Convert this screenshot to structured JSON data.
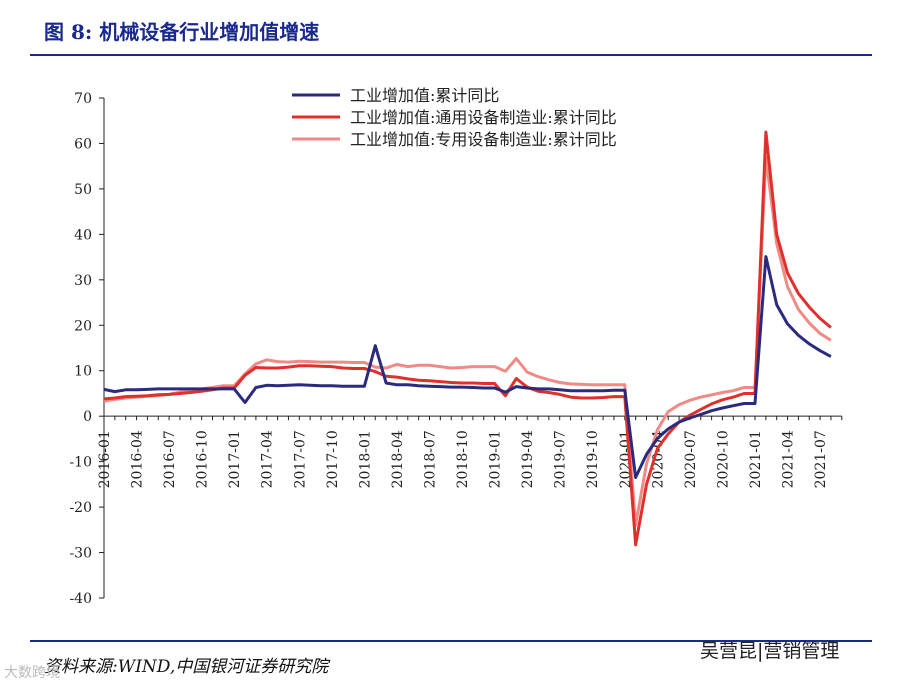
{
  "header": {
    "figure_title": "图 8:  机械设备行业增加值增速"
  },
  "footer": {
    "source": "资料来源:WIND,中国银河证券研究院",
    "watermark_right": "吴营昆|营销管理",
    "watermark_left": "大数跨境"
  },
  "chart_data": {
    "type": "line",
    "title": "",
    "xlabel": "",
    "ylabel": "",
    "ylim": [
      -40,
      70
    ],
    "yticks": [
      70,
      60,
      50,
      40,
      30,
      20,
      10,
      0,
      -10,
      -20,
      -30,
      -40
    ],
    "xlim": [
      "2016-01",
      "2021-09"
    ],
    "x_tick_labels": [
      "2016-01",
      "2016-04",
      "2016-07",
      "2016-10",
      "2017-01",
      "2017-04",
      "2017-07",
      "2017-10",
      "2018-01",
      "2018-04",
      "2018-07",
      "2018-10",
      "2019-01",
      "2019-04",
      "2019-07",
      "2019-10",
      "2020-01",
      "2020-04",
      "2020-07",
      "2020-10",
      "2021-01",
      "2021-04",
      "2021-07"
    ],
    "grid": false,
    "legend_position": "top",
    "series": [
      {
        "name": "工业增加值:累计同比",
        "color": "#2b2b7e",
        "points": [
          [
            "2016-01",
            5.9
          ],
          [
            "2016-02",
            5.4
          ],
          [
            "2016-03",
            5.8
          ],
          [
            "2016-04",
            5.8
          ],
          [
            "2016-05",
            5.9
          ],
          [
            "2016-06",
            6.0
          ],
          [
            "2016-07",
            6.0
          ],
          [
            "2016-08",
            6.0
          ],
          [
            "2016-09",
            6.0
          ],
          [
            "2016-10",
            6.0
          ],
          [
            "2016-11",
            6.0
          ],
          [
            "2016-12",
            6.0
          ],
          [
            "2017-01",
            6.0
          ],
          [
            "2017-02",
            3.0
          ],
          [
            "2017-03",
            6.3
          ],
          [
            "2017-04",
            6.8
          ],
          [
            "2017-05",
            6.7
          ],
          [
            "2017-06",
            6.8
          ],
          [
            "2017-07",
            6.9
          ],
          [
            "2017-08",
            6.8
          ],
          [
            "2017-09",
            6.7
          ],
          [
            "2017-10",
            6.7
          ],
          [
            "2017-11",
            6.6
          ],
          [
            "2017-12",
            6.6
          ],
          [
            "2018-01",
            6.6
          ],
          [
            "2018-02",
            15.5
          ],
          [
            "2018-03",
            7.3
          ],
          [
            "2018-04",
            6.9
          ],
          [
            "2018-05",
            6.9
          ],
          [
            "2018-06",
            6.7
          ],
          [
            "2018-07",
            6.6
          ],
          [
            "2018-08",
            6.5
          ],
          [
            "2018-09",
            6.4
          ],
          [
            "2018-10",
            6.4
          ],
          [
            "2018-11",
            6.3
          ],
          [
            "2018-12",
            6.2
          ],
          [
            "2019-01",
            6.2
          ],
          [
            "2019-02",
            5.3
          ],
          [
            "2019-03",
            6.5
          ],
          [
            "2019-04",
            6.2
          ],
          [
            "2019-05",
            6.0
          ],
          [
            "2019-06",
            6.0
          ],
          [
            "2019-07",
            5.8
          ],
          [
            "2019-08",
            5.6
          ],
          [
            "2019-09",
            5.6
          ],
          [
            "2019-10",
            5.6
          ],
          [
            "2019-11",
            5.6
          ],
          [
            "2019-12",
            5.7
          ],
          [
            "2020-01",
            5.7
          ],
          [
            "2020-02",
            -13.5
          ],
          [
            "2020-03",
            -8.4
          ],
          [
            "2020-04",
            -4.9
          ],
          [
            "2020-05",
            -2.8
          ],
          [
            "2020-06",
            -1.3
          ],
          [
            "2020-07",
            -0.4
          ],
          [
            "2020-08",
            0.4
          ],
          [
            "2020-09",
            1.2
          ],
          [
            "2020-10",
            1.8
          ],
          [
            "2020-11",
            2.3
          ],
          [
            "2020-12",
            2.8
          ],
          [
            "2021-01",
            2.8
          ],
          [
            "2021-02",
            35.1
          ],
          [
            "2021-03",
            24.5
          ],
          [
            "2021-04",
            20.3
          ],
          [
            "2021-05",
            17.8
          ],
          [
            "2021-06",
            15.9
          ],
          [
            "2021-07",
            14.4
          ],
          [
            "2021-08",
            13.1
          ]
        ]
      },
      {
        "name": "工业增加值:通用设备制造业:累计同比",
        "color": "#e0302c",
        "points": [
          [
            "2016-01",
            3.8
          ],
          [
            "2016-02",
            4.0
          ],
          [
            "2016-03",
            4.3
          ],
          [
            "2016-04",
            4.4
          ],
          [
            "2016-05",
            4.5
          ],
          [
            "2016-06",
            4.7
          ],
          [
            "2016-07",
            4.8
          ],
          [
            "2016-08",
            5.0
          ],
          [
            "2016-09",
            5.2
          ],
          [
            "2016-10",
            5.5
          ],
          [
            "2016-11",
            5.8
          ],
          [
            "2016-12",
            6.2
          ],
          [
            "2017-01",
            6.2
          ],
          [
            "2017-02",
            9.0
          ],
          [
            "2017-03",
            10.7
          ],
          [
            "2017-04",
            10.6
          ],
          [
            "2017-05",
            10.6
          ],
          [
            "2017-06",
            10.8
          ],
          [
            "2017-07",
            11.1
          ],
          [
            "2017-08",
            11.1
          ],
          [
            "2017-09",
            11.0
          ],
          [
            "2017-10",
            10.9
          ],
          [
            "2017-11",
            10.6
          ],
          [
            "2017-12",
            10.5
          ],
          [
            "2018-01",
            10.5
          ],
          [
            "2018-02",
            9.8
          ],
          [
            "2018-03",
            8.8
          ],
          [
            "2018-04",
            8.6
          ],
          [
            "2018-05",
            8.2
          ],
          [
            "2018-06",
            7.9
          ],
          [
            "2018-07",
            7.8
          ],
          [
            "2018-08",
            7.6
          ],
          [
            "2018-09",
            7.4
          ],
          [
            "2018-10",
            7.3
          ],
          [
            "2018-11",
            7.3
          ],
          [
            "2018-12",
            7.2
          ],
          [
            "2019-01",
            7.2
          ],
          [
            "2019-02",
            4.5
          ],
          [
            "2019-03",
            8.3
          ],
          [
            "2019-04",
            6.4
          ],
          [
            "2019-05",
            5.5
          ],
          [
            "2019-06",
            5.2
          ],
          [
            "2019-07",
            4.8
          ],
          [
            "2019-08",
            4.2
          ],
          [
            "2019-09",
            4.0
          ],
          [
            "2019-10",
            4.0
          ],
          [
            "2019-11",
            4.1
          ],
          [
            "2019-12",
            4.3
          ],
          [
            "2020-01",
            4.3
          ],
          [
            "2020-02",
            -28.3
          ],
          [
            "2020-03",
            -15.0
          ],
          [
            "2020-04",
            -7.1
          ],
          [
            "2020-05",
            -3.9
          ],
          [
            "2020-06",
            -1.3
          ],
          [
            "2020-07",
            0.2
          ],
          [
            "2020-08",
            1.5
          ],
          [
            "2020-09",
            2.7
          ],
          [
            "2020-10",
            3.6
          ],
          [
            "2020-11",
            4.2
          ],
          [
            "2020-12",
            5.0
          ],
          [
            "2021-01",
            5.0
          ],
          [
            "2021-02",
            62.5
          ],
          [
            "2021-03",
            40.0
          ],
          [
            "2021-04",
            31.5
          ],
          [
            "2021-05",
            27.0
          ],
          [
            "2021-06",
            24.0
          ],
          [
            "2021-07",
            21.5
          ],
          [
            "2021-08",
            19.5
          ]
        ]
      },
      {
        "name": "工业增加值:专用设备制造业:累计同比",
        "color": "#f08a86",
        "points": [
          [
            "2016-01",
            3.3
          ],
          [
            "2016-02",
            3.7
          ],
          [
            "2016-03",
            4.0
          ],
          [
            "2016-04",
            4.2
          ],
          [
            "2016-05",
            4.4
          ],
          [
            "2016-06",
            4.5
          ],
          [
            "2016-07",
            4.8
          ],
          [
            "2016-08",
            5.3
          ],
          [
            "2016-09",
            5.6
          ],
          [
            "2016-10",
            6.0
          ],
          [
            "2016-11",
            6.3
          ],
          [
            "2016-12",
            6.7
          ],
          [
            "2017-01",
            6.7
          ],
          [
            "2017-02",
            9.3
          ],
          [
            "2017-03",
            11.5
          ],
          [
            "2017-04",
            12.4
          ],
          [
            "2017-05",
            12.0
          ],
          [
            "2017-06",
            11.9
          ],
          [
            "2017-07",
            12.1
          ],
          [
            "2017-08",
            12.0
          ],
          [
            "2017-09",
            11.9
          ],
          [
            "2017-10",
            11.9
          ],
          [
            "2017-11",
            11.9
          ],
          [
            "2017-12",
            11.8
          ],
          [
            "2018-01",
            11.8
          ],
          [
            "2018-02",
            10.8
          ],
          [
            "2018-03",
            10.6
          ],
          [
            "2018-04",
            11.4
          ],
          [
            "2018-05",
            10.9
          ],
          [
            "2018-06",
            11.2
          ],
          [
            "2018-07",
            11.2
          ],
          [
            "2018-08",
            10.9
          ],
          [
            "2018-09",
            10.6
          ],
          [
            "2018-10",
            10.7
          ],
          [
            "2018-11",
            10.9
          ],
          [
            "2018-12",
            10.9
          ],
          [
            "2019-01",
            10.9
          ],
          [
            "2019-02",
            9.9
          ],
          [
            "2019-03",
            12.7
          ],
          [
            "2019-04",
            9.7
          ],
          [
            "2019-05",
            8.7
          ],
          [
            "2019-06",
            8.0
          ],
          [
            "2019-07",
            7.4
          ],
          [
            "2019-08",
            7.1
          ],
          [
            "2019-09",
            7.0
          ],
          [
            "2019-10",
            6.9
          ],
          [
            "2019-11",
            6.9
          ],
          [
            "2019-12",
            6.9
          ],
          [
            "2020-01",
            6.9
          ],
          [
            "2020-02",
            -24.0
          ],
          [
            "2020-03",
            -10.5
          ],
          [
            "2020-04",
            -3.0
          ],
          [
            "2020-05",
            1.0
          ],
          [
            "2020-06",
            2.5
          ],
          [
            "2020-07",
            3.5
          ],
          [
            "2020-08",
            4.2
          ],
          [
            "2020-09",
            4.7
          ],
          [
            "2020-10",
            5.2
          ],
          [
            "2020-11",
            5.6
          ],
          [
            "2020-12",
            6.3
          ],
          [
            "2021-01",
            6.3
          ],
          [
            "2021-02",
            57.0
          ],
          [
            "2021-03",
            38.0
          ],
          [
            "2021-04",
            28.5
          ],
          [
            "2021-05",
            23.5
          ],
          [
            "2021-06",
            20.5
          ],
          [
            "2021-07",
            18.2
          ],
          [
            "2021-08",
            16.7
          ]
        ]
      }
    ]
  }
}
